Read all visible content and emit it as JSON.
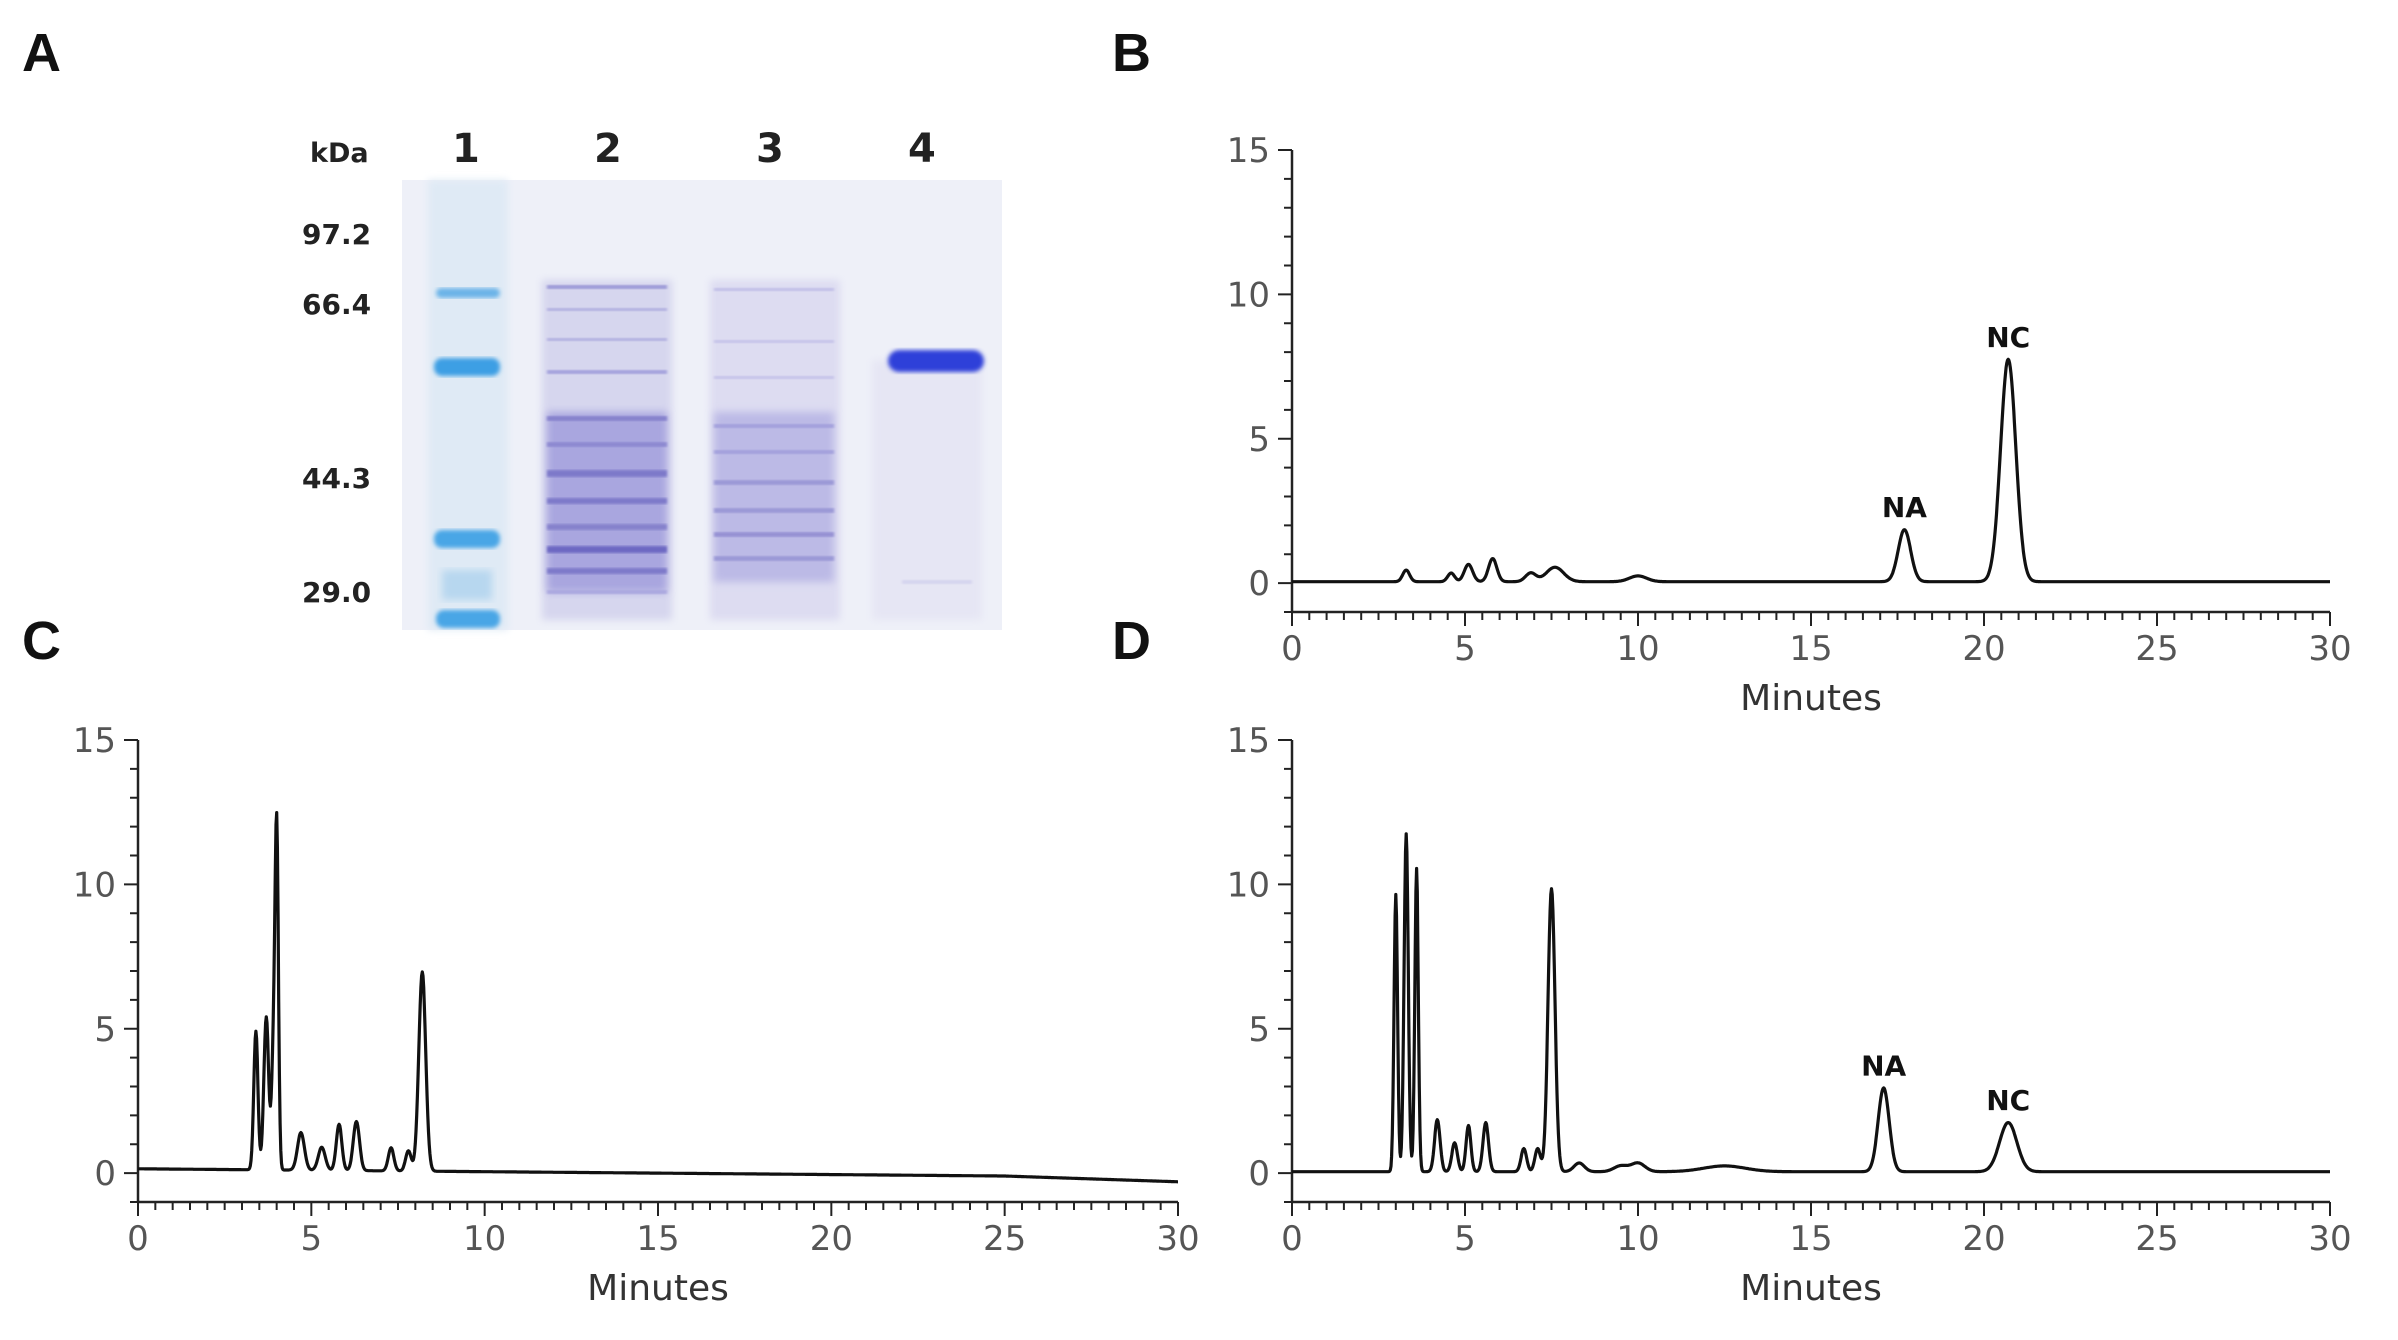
{
  "panels": {
    "a": "A",
    "b": "B",
    "c": "C",
    "d": "D"
  },
  "gel": {
    "unit_label": "kDa",
    "lanes": [
      "1",
      "2",
      "3",
      "4"
    ],
    "markers": [
      "97.2",
      "66.4",
      "44.3",
      "29.0"
    ],
    "colors": {
      "background": "#eef0f8",
      "marker_band": "#4aa6e6",
      "lysate_band": "#7d79c9",
      "purified_band": "#2d3fd9"
    }
  },
  "chart_data": [
    {
      "panel": "B",
      "type": "line",
      "xlabel": "Minutes",
      "ylabel": "",
      "xlim": [
        0,
        30
      ],
      "ylim": [
        -1,
        15
      ],
      "xticks": [
        0,
        5,
        10,
        15,
        20,
        25,
        30
      ],
      "yticks": [
        0,
        5,
        10,
        15
      ],
      "peaks": [
        {
          "t": 3.3,
          "h": 0.4,
          "w": 0.1
        },
        {
          "t": 4.6,
          "h": 0.3,
          "w": 0.1
        },
        {
          "t": 5.1,
          "h": 0.6,
          "w": 0.12
        },
        {
          "t": 5.8,
          "h": 0.8,
          "w": 0.12
        },
        {
          "t": 6.9,
          "h": 0.3,
          "w": 0.15
        },
        {
          "t": 7.6,
          "h": 0.5,
          "w": 0.25
        },
        {
          "t": 10.0,
          "h": 0.2,
          "w": 0.25
        },
        {
          "t": 17.7,
          "h": 1.8,
          "w": 0.18
        },
        {
          "t": 20.7,
          "h": 7.7,
          "w": 0.22
        }
      ],
      "annotations": [
        {
          "text": "NA",
          "x": 17.7,
          "y": 1.8
        },
        {
          "text": "NC",
          "x": 20.7,
          "y": 7.7
        }
      ]
    },
    {
      "panel": "C",
      "type": "line",
      "xlabel": "Minutes",
      "ylabel": "",
      "xlim": [
        0,
        30
      ],
      "ylim": [
        -1,
        15
      ],
      "xticks": [
        0,
        5,
        10,
        15,
        20,
        25,
        30
      ],
      "yticks": [
        0,
        5,
        10,
        15
      ],
      "peaks": [
        {
          "t": 3.4,
          "h": 4.8,
          "w": 0.06
        },
        {
          "t": 3.7,
          "h": 5.3,
          "w": 0.07
        },
        {
          "t": 3.9,
          "h": 3.5,
          "w": 0.05
        },
        {
          "t": 4.0,
          "h": 11.9,
          "w": 0.05
        },
        {
          "t": 4.7,
          "h": 1.3,
          "w": 0.1
        },
        {
          "t": 5.3,
          "h": 0.8,
          "w": 0.1
        },
        {
          "t": 5.8,
          "h": 1.6,
          "w": 0.08
        },
        {
          "t": 6.3,
          "h": 1.7,
          "w": 0.09
        },
        {
          "t": 7.3,
          "h": 0.8,
          "w": 0.08
        },
        {
          "t": 7.8,
          "h": 0.7,
          "w": 0.08
        },
        {
          "t": 8.2,
          "h": 6.9,
          "w": 0.1
        }
      ],
      "annotations": []
    },
    {
      "panel": "D",
      "type": "line",
      "xlabel": "Minutes",
      "ylabel": "",
      "xlim": [
        0,
        30
      ],
      "ylim": [
        -1,
        15
      ],
      "xticks": [
        0,
        5,
        10,
        15,
        20,
        25,
        30
      ],
      "yticks": [
        0,
        5,
        10,
        15
      ],
      "peaks": [
        {
          "t": 3.0,
          "h": 9.6,
          "w": 0.05
        },
        {
          "t": 3.3,
          "h": 11.7,
          "w": 0.06
        },
        {
          "t": 3.6,
          "h": 10.5,
          "w": 0.05
        },
        {
          "t": 4.2,
          "h": 1.8,
          "w": 0.08
        },
        {
          "t": 4.7,
          "h": 1.0,
          "w": 0.08
        },
        {
          "t": 5.1,
          "h": 1.6,
          "w": 0.07
        },
        {
          "t": 5.6,
          "h": 1.7,
          "w": 0.08
        },
        {
          "t": 6.7,
          "h": 0.8,
          "w": 0.08
        },
        {
          "t": 7.1,
          "h": 0.8,
          "w": 0.08
        },
        {
          "t": 7.5,
          "h": 9.8,
          "w": 0.1
        },
        {
          "t": 8.3,
          "h": 0.3,
          "w": 0.15
        },
        {
          "t": 9.5,
          "h": 0.2,
          "w": 0.2
        },
        {
          "t": 10.0,
          "h": 0.3,
          "w": 0.2
        },
        {
          "t": 12.5,
          "h": 0.2,
          "w": 0.6
        },
        {
          "t": 17.1,
          "h": 2.9,
          "w": 0.16
        },
        {
          "t": 20.7,
          "h": 1.7,
          "w": 0.25
        }
      ],
      "annotations": [
        {
          "text": "NA",
          "x": 17.1,
          "y": 2.9
        },
        {
          "text": "NC",
          "x": 20.7,
          "y": 1.7
        }
      ]
    }
  ]
}
